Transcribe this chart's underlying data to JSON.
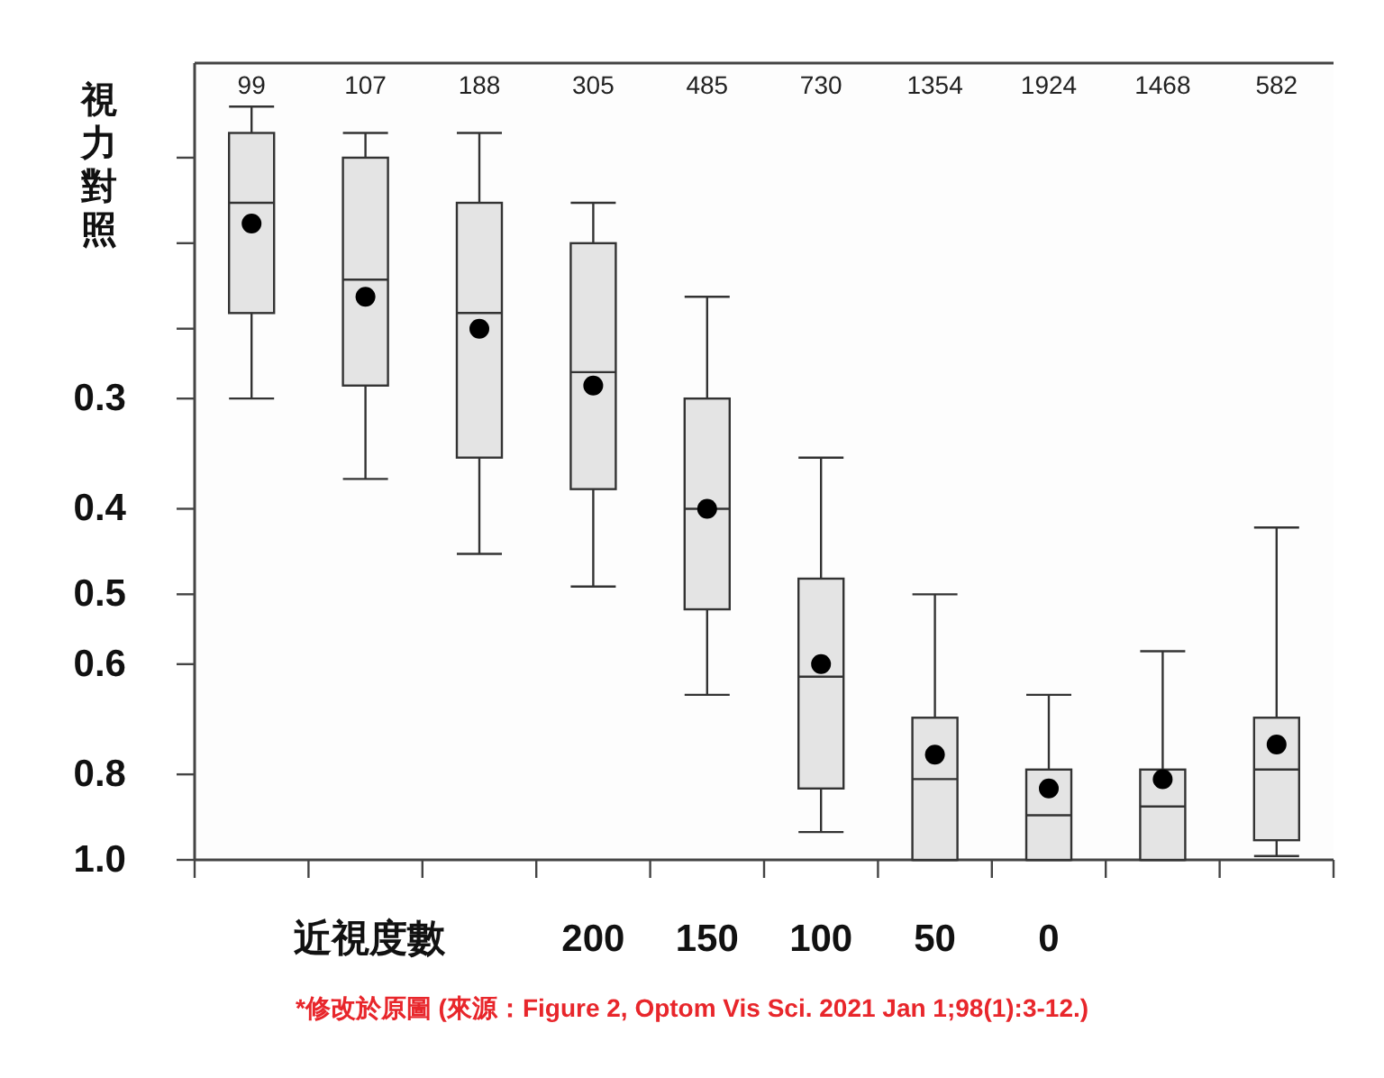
{
  "chart_data": {
    "type": "box",
    "ylabel": "視力對照",
    "xlabel": "近視度數",
    "categories": [
      null,
      null,
      null,
      "200",
      "150",
      "100",
      "50",
      "0",
      null,
      null
    ],
    "boxes": [
      {
        "low": 0.14,
        "q1": 0.15,
        "median": 0.18,
        "q3": 0.24,
        "high": 0.3,
        "mean": 0.19
      },
      {
        "low": 0.15,
        "q1": 0.16,
        "median": 0.22,
        "q3": 0.29,
        "high": 0.37,
        "mean": 0.23
      },
      {
        "low": 0.15,
        "q1": 0.18,
        "median": 0.24,
        "q3": 0.35,
        "high": 0.45,
        "mean": 0.25
      },
      {
        "low": 0.18,
        "q1": 0.2,
        "median": 0.28,
        "q3": 0.38,
        "high": 0.49,
        "mean": 0.29
      },
      {
        "low": 0.23,
        "q1": 0.3,
        "median": 0.4,
        "q3": 0.52,
        "high": 0.65,
        "mean": 0.4
      },
      {
        "low": 0.35,
        "q1": 0.48,
        "median": 0.62,
        "q3": 0.83,
        "high": 0.93,
        "mean": 0.6
      },
      {
        "low": 0.5,
        "q1": 0.69,
        "median": 0.81,
        "q3": 1.0,
        "high": 1.0,
        "mean": 0.76
      },
      {
        "low": 0.65,
        "q1": 0.79,
        "median": 0.89,
        "q3": 1.0,
        "high": 1.0,
        "mean": 0.83
      },
      {
        "low": 0.58,
        "q1": 0.79,
        "median": 0.87,
        "q3": 1.0,
        "high": 1.0,
        "mean": 0.81
      },
      {
        "low": 0.42,
        "q1": 0.69,
        "median": 0.79,
        "q3": 0.95,
        "high": 0.99,
        "mean": 0.74
      }
    ],
    "value_labels": [
      "99",
      "107",
      "188",
      "305",
      "485",
      "730",
      "1354",
      "1924",
      "1468",
      "582"
    ],
    "log": true,
    "ylim": [
      1.0,
      0.125
    ],
    "yticks": [
      {
        "value": 1.0,
        "label": "1.0"
      },
      0.8,
      0.6,
      0.5,
      0.4,
      0.3,
      {
        "value": 0.25,
        "label": null
      },
      {
        "value": 0.2,
        "label": null
      },
      {
        "value": 0.16,
        "label": null
      }
    ],
    "annotations": [
      "*修改於原圖 (來源：Figure 2, Optom Vis Sci. 2021 Jan 1;98(1):3-12.)"
    ]
  }
}
